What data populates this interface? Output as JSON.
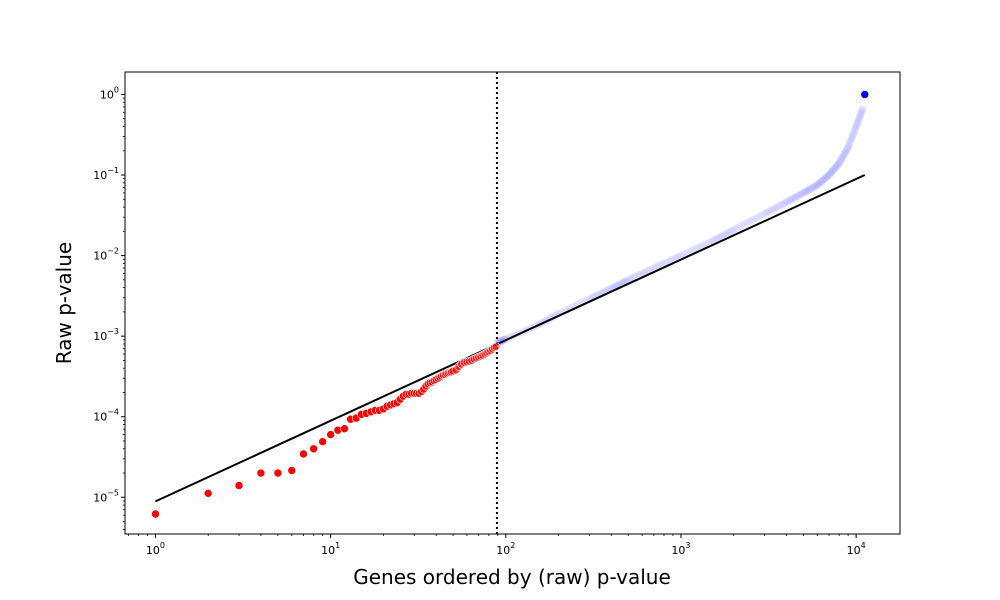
{
  "chart_data": {
    "type": "scatter",
    "title": "",
    "xlabel": "Genes ordered by (raw) p-value",
    "ylabel": "Raw p-value",
    "xscale": "log",
    "yscale": "log",
    "xlim": [
      0.67,
      17800
    ],
    "ylim": [
      3.5e-06,
      1.9
    ],
    "x_ticks": [
      {
        "value": 1,
        "base": "10",
        "exp": "0"
      },
      {
        "value": 10,
        "base": "10",
        "exp": "1"
      },
      {
        "value": 100,
        "base": "10",
        "exp": "2"
      },
      {
        "value": 1000,
        "base": "10",
        "exp": "3"
      },
      {
        "value": 10000,
        "base": "10",
        "exp": "4"
      }
    ],
    "y_ticks": [
      {
        "value": 1e-05,
        "base": "10",
        "exp": "−5"
      },
      {
        "value": 0.0001,
        "base": "10",
        "exp": "−4"
      },
      {
        "value": 0.001,
        "base": "10",
        "exp": "−3"
      },
      {
        "value": 0.01,
        "base": "10",
        "exp": "−2"
      },
      {
        "value": 0.1,
        "base": "10",
        "exp": "−1"
      },
      {
        "value": 1,
        "base": "10",
        "exp": "0"
      }
    ],
    "grid": false,
    "colors": {
      "significant": "#ff0000",
      "nonsignificant": "#0000ff",
      "reference_line": "#000000",
      "cutoff_line": "#000000"
    },
    "significant_points": [
      [
        1,
        6.2e-06
      ],
      [
        2,
        1.12e-05
      ],
      [
        3,
        1.4e-05
      ],
      [
        4,
        2e-05
      ],
      [
        5,
        2e-05
      ],
      [
        6,
        2.15e-05
      ],
      [
        7,
        3.45e-05
      ],
      [
        8,
        4e-05
      ],
      [
        9,
        4.9e-05
      ],
      [
        10,
        6e-05
      ],
      [
        11,
        6.8e-05
      ],
      [
        12,
        7.1e-05
      ],
      [
        13,
        9.3e-05
      ],
      [
        14,
        9.6e-05
      ],
      [
        15,
        0.000107
      ],
      [
        16,
        0.00011
      ],
      [
        17,
        0.000115
      ],
      [
        18,
        0.00012
      ],
      [
        19,
        0.00012
      ],
      [
        20,
        0.000125
      ],
      [
        21,
        0.000135
      ],
      [
        22,
        0.00014
      ],
      [
        23,
        0.000145
      ],
      [
        24,
        0.00015
      ],
      [
        25,
        0.000165
      ],
      [
        26,
        0.00018
      ],
      [
        27,
        0.00019
      ],
      [
        28,
        0.00019
      ],
      [
        29,
        0.000195
      ],
      [
        30,
        0.000195
      ],
      [
        31,
        0.000195
      ],
      [
        32,
        0.000195
      ],
      [
        33,
        0.000205
      ],
      [
        34,
        0.00022
      ],
      [
        35,
        0.00024
      ],
      [
        36,
        0.000255
      ],
      [
        37,
        0.000265
      ],
      [
        38,
        0.00027
      ],
      [
        39,
        0.00028
      ],
      [
        40,
        0.00029
      ],
      [
        41,
        0.0003
      ],
      [
        42,
        0.00031
      ],
      [
        43,
        0.00032
      ],
      [
        44,
        0.00033
      ],
      [
        45,
        0.000335
      ],
      [
        46,
        0.000345
      ],
      [
        47,
        0.00035
      ],
      [
        48,
        0.000355
      ],
      [
        49,
        0.00036
      ],
      [
        50,
        0.00037
      ],
      [
        52,
        0.00038
      ],
      [
        54,
        0.00042
      ],
      [
        56,
        0.00045
      ],
      [
        58,
        0.00047
      ],
      [
        60,
        0.00048
      ],
      [
        62,
        0.00049
      ],
      [
        64,
        0.0005
      ],
      [
        66,
        0.00052
      ],
      [
        68,
        0.000535
      ],
      [
        70,
        0.00055
      ],
      [
        72,
        0.000565
      ],
      [
        74,
        0.00058
      ],
      [
        76,
        0.0006
      ],
      [
        78,
        0.00062
      ],
      [
        80,
        0.00064
      ],
      [
        82,
        0.00066
      ],
      [
        84,
        0.00069
      ],
      [
        86,
        0.00072
      ],
      [
        88,
        0.00074
      ]
    ],
    "nonsignificant_curve": [
      [
        89,
        0.00082
      ],
      [
        100,
        0.00092
      ],
      [
        150,
        0.00135
      ],
      [
        200,
        0.0019
      ],
      [
        300,
        0.0029
      ],
      [
        400,
        0.0039
      ],
      [
        500,
        0.005
      ],
      [
        700,
        0.007
      ],
      [
        1000,
        0.01
      ],
      [
        1500,
        0.015
      ],
      [
        2000,
        0.021
      ],
      [
        3000,
        0.033
      ],
      [
        4000,
        0.046
      ],
      [
        5000,
        0.06
      ],
      [
        6000,
        0.075
      ],
      [
        7000,
        0.1
      ],
      [
        8000,
        0.14
      ],
      [
        9000,
        0.22
      ],
      [
        10000,
        0.4
      ],
      [
        11000,
        0.7
      ]
    ],
    "highlight_point": [
      11200,
      1.0
    ],
    "reference_line": [
      [
        1,
        8.9e-06
      ],
      [
        11200,
        0.1
      ]
    ],
    "cutoff_x": 89
  }
}
